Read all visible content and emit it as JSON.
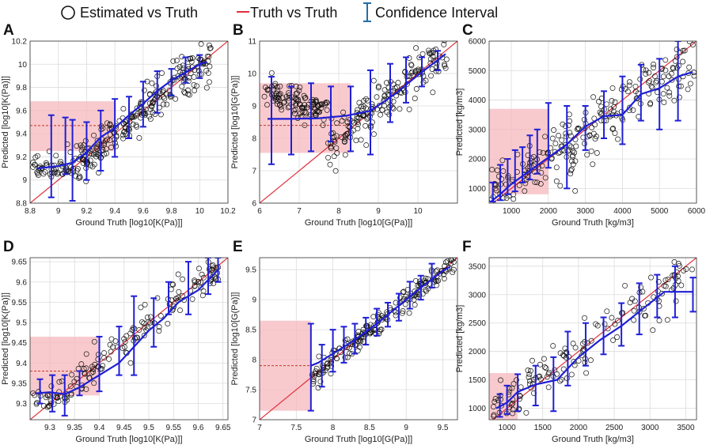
{
  "legend": {
    "estimated": "Estimated vs Truth",
    "truth": "Truth vs Truth",
    "ci": "Confidence Interval"
  },
  "colors": {
    "points": "#111111",
    "truth_line": "#e0303a",
    "fit_line": "#1f1fd6",
    "ci_bar": "#1f1fd6",
    "shade": "#f6b8bc",
    "shade_dash": "#c0392b"
  },
  "chart_data": [
    {
      "panel": "A",
      "type": "scatter",
      "xlabel": "Ground Truth [log10[K(Pa)]]",
      "ylabel": "Predicted [log10[K(Pa)]]",
      "xlim": [
        8.8,
        10.2
      ],
      "ylim": [
        8.8,
        10.2
      ],
      "xticks": [
        "8.8",
        "9",
        "9.2",
        "9.4",
        "9.6",
        "9.8",
        "10",
        "10.2"
      ],
      "yticks": [
        "8.8",
        "9",
        "9.2",
        "9.4",
        "9.6",
        "9.8",
        "10",
        "10.2"
      ],
      "shade": {
        "x": [
          8.8,
          9.4
        ],
        "y": [
          9.25,
          9.68
        ],
        "dash_y": 9.47
      },
      "fit": {
        "x": [
          8.85,
          9.0,
          9.1,
          9.2,
          9.3,
          9.4,
          9.5,
          9.6,
          9.7,
          9.8,
          9.9,
          10.0,
          10.05
        ],
        "y": [
          9.1,
          9.12,
          9.15,
          9.24,
          9.37,
          9.45,
          9.56,
          9.66,
          9.77,
          9.86,
          9.93,
          10.0,
          10.02
        ]
      },
      "ci": [
        [
          8.95,
          8.85,
          9.56
        ],
        [
          9.05,
          9.05,
          9.54
        ],
        [
          9.1,
          8.82,
          9.52
        ],
        [
          9.2,
          9.0,
          9.5
        ],
        [
          9.3,
          9.08,
          9.6
        ],
        [
          9.4,
          9.2,
          9.7
        ],
        [
          9.5,
          9.36,
          9.72
        ],
        [
          9.6,
          9.46,
          9.85
        ],
        [
          9.7,
          9.58,
          9.94
        ],
        [
          9.8,
          9.73,
          9.96
        ],
        [
          9.9,
          9.84,
          10.06
        ],
        [
          10.0,
          9.88,
          10.08
        ]
      ],
      "points": {
        "n": 300,
        "xmin": 8.82,
        "xmax": 10.08,
        "slope": 1.0,
        "offset": 0.0,
        "scatter": 0.09,
        "floor": 9.05,
        "seed": 11
      }
    },
    {
      "panel": "B",
      "type": "scatter",
      "xlabel": "Ground Truth [log10[G(Pa)]]",
      "ylabel": "Predicted [log10[G(Pa)]]",
      "xlim": [
        6,
        11
      ],
      "ylim": [
        6,
        11
      ],
      "xticks": [
        "6",
        "7",
        "8",
        "9",
        "10"
      ],
      "yticks": [
        "6",
        "7",
        "8",
        "9",
        "10",
        "11"
      ],
      "shade": {
        "x": [
          6,
          8.3
        ],
        "y": [
          7.55,
          9.7
        ],
        "dash_y": 8.4
      },
      "fit": {
        "x": [
          6.2,
          6.8,
          7.5,
          8.2,
          8.8,
          9.4,
          10.0,
          10.7
        ],
        "y": [
          8.6,
          8.6,
          8.62,
          8.7,
          8.85,
          9.35,
          9.95,
          10.6
        ]
      },
      "ci": [
        [
          6.3,
          7.2,
          9.9
        ],
        [
          6.8,
          7.5,
          9.6
        ],
        [
          7.3,
          7.6,
          9.7
        ],
        [
          7.8,
          7.9,
          9.6
        ],
        [
          8.3,
          7.6,
          9.6
        ],
        [
          8.8,
          7.5,
          10.1
        ],
        [
          9.3,
          8.5,
          10.3
        ],
        [
          9.7,
          9.1,
          10.5
        ],
        [
          10.1,
          9.6,
          10.5
        ],
        [
          10.5,
          10.1,
          10.7
        ]
      ],
      "points": {
        "n": 300,
        "xmin": 6.1,
        "xmax": 10.75,
        "slope": 1.0,
        "offset": 0.0,
        "scatter": 0.35,
        "floor": 8.5,
        "seed": 22
      }
    },
    {
      "panel": "C",
      "type": "scatter",
      "xlabel": "Ground Truth [kg/m3]",
      "ylabel": "Predicted [kg/m3]",
      "xlim": [
        400,
        6000
      ],
      "ylim": [
        500,
        6000
      ],
      "xticks": [
        "1000",
        "2000",
        "3000",
        "4000",
        "5000",
        "6000"
      ],
      "yticks": [
        "1000",
        "2000",
        "3000",
        "4000",
        "5000",
        "6000"
      ],
      "xtickvals": [
        1000,
        2000,
        3000,
        4000,
        5000,
        6000
      ],
      "ytickvals": [
        1000,
        2000,
        3000,
        4000,
        5000,
        6000
      ],
      "shade": {
        "x": [
          400,
          2000
        ],
        "y": [
          800,
          3700
        ],
        "dash_y": null
      },
      "fit": {
        "x": [
          450,
          700,
          1000,
          1500,
          2000,
          2500,
          3000,
          3500,
          4000,
          4500,
          5000,
          5500,
          5900
        ],
        "y": [
          550,
          800,
          1150,
          1600,
          2050,
          2500,
          3100,
          3450,
          3500,
          4200,
          4400,
          4800,
          4950
        ]
      },
      "ci": [
        [
          500,
          550,
          1200
        ],
        [
          700,
          600,
          1800
        ],
        [
          900,
          800,
          2000
        ],
        [
          1100,
          900,
          2300
        ],
        [
          1300,
          1200,
          2400
        ],
        [
          1500,
          1300,
          2800
        ],
        [
          1700,
          1500,
          3000
        ],
        [
          2000,
          1700,
          3900
        ],
        [
          2500,
          1000,
          3800
        ],
        [
          3000,
          2300,
          3800
        ],
        [
          3500,
          2700,
          4300
        ],
        [
          4000,
          2500,
          4800
        ],
        [
          4500,
          3300,
          5200
        ],
        [
          5000,
          3000,
          5400
        ],
        [
          5500,
          3300,
          6000
        ]
      ],
      "points": {
        "n": 240,
        "xmin": 420,
        "xmax": 5950,
        "slope": 0.85,
        "offset": 350,
        "scatter": 520,
        "floor": 500,
        "seed": 33
      }
    },
    {
      "panel": "D",
      "type": "scatter",
      "xlabel": "Ground Truth [log10[K(Pa)]]",
      "ylabel": "Predicted [log10[K(Pa)]]",
      "xlim": [
        9.26,
        9.66
      ],
      "ylim": [
        9.26,
        9.66
      ],
      "xticks": [
        "9.3",
        "9.35",
        "9.4",
        "9.45",
        "9.5",
        "9.55",
        "9.6",
        "9.65"
      ],
      "yticks": [
        "9.3",
        "9.35",
        "9.4",
        "9.45",
        "9.5",
        "9.55",
        "9.6",
        "9.65"
      ],
      "xtickvals": [
        9.3,
        9.35,
        9.4,
        9.45,
        9.5,
        9.55,
        9.6,
        9.65
      ],
      "ytickvals": [
        9.3,
        9.35,
        9.4,
        9.45,
        9.5,
        9.55,
        9.6,
        9.65
      ],
      "shade": {
        "x": [
          9.26,
          9.4
        ],
        "y": [
          9.32,
          9.465
        ],
        "dash_y": 9.38
      },
      "fit": {
        "x": [
          9.27,
          9.3,
          9.33,
          9.36,
          9.4,
          9.44,
          9.47,
          9.5,
          9.53,
          9.56,
          9.6,
          9.64
        ],
        "y": [
          9.325,
          9.328,
          9.323,
          9.34,
          9.37,
          9.4,
          9.44,
          9.48,
          9.51,
          9.55,
          9.58,
          9.63
        ]
      },
      "ci": [
        [
          9.28,
          9.3,
          9.36
        ],
        [
          9.305,
          9.28,
          9.37
        ],
        [
          9.33,
          9.27,
          9.37
        ],
        [
          9.36,
          9.32,
          9.38
        ],
        [
          9.4,
          9.33,
          9.465
        ],
        [
          9.44,
          9.37,
          9.49
        ],
        [
          9.47,
          9.37,
          9.565
        ],
        [
          9.51,
          9.44,
          9.56
        ],
        [
          9.54,
          9.52,
          9.6
        ],
        [
          9.58,
          9.52,
          9.65
        ],
        [
          9.62,
          9.57,
          9.66
        ],
        [
          9.64,
          9.6,
          9.66
        ]
      ],
      "points": {
        "n": 170,
        "xmin": 9.265,
        "xmax": 9.655,
        "slope": 1.0,
        "offset": 0.0,
        "scatter": 0.022,
        "floor": 9.3,
        "seed": 44
      }
    },
    {
      "panel": "E",
      "type": "scatter",
      "xlabel": "Ground Truth [log10[G(Pa)]]",
      "ylabel": "Predicted [log10[G(Pa)]]",
      "xlim": [
        7,
        9.7
      ],
      "ylim": [
        7,
        9.7
      ],
      "xticks": [
        "7",
        "7.5",
        "8",
        "8.5",
        "9",
        "9.5"
      ],
      "yticks": [
        "7",
        "7.5",
        "8",
        "8.5",
        "9",
        "9.5"
      ],
      "xtickvals": [
        7,
        7.5,
        8,
        8.5,
        9,
        9.5
      ],
      "ytickvals": [
        7,
        7.5,
        8,
        8.5,
        9,
        9.5
      ],
      "shade": {
        "x": [
          7,
          7.7
        ],
        "y": [
          7.15,
          8.65
        ],
        "dash_y": 7.9
      },
      "fit": {
        "x": [
          7.7,
          7.8,
          8.0,
          8.3,
          8.6,
          8.9,
          9.2,
          9.5,
          9.6
        ],
        "y": [
          7.9,
          7.95,
          8.1,
          8.33,
          8.6,
          8.9,
          9.2,
          9.48,
          9.55
        ]
      },
      "ci": [
        [
          7.7,
          7.15,
          8.6
        ],
        [
          7.85,
          7.55,
          8.25
        ],
        [
          8.0,
          7.8,
          8.5
        ],
        [
          8.15,
          7.95,
          8.55
        ],
        [
          8.3,
          8.1,
          8.6
        ],
        [
          8.45,
          8.25,
          8.7
        ],
        [
          8.6,
          8.4,
          8.85
        ],
        [
          8.75,
          8.55,
          8.95
        ],
        [
          8.9,
          8.65,
          9.1
        ],
        [
          9.05,
          8.85,
          9.3
        ],
        [
          9.2,
          9.0,
          9.4
        ],
        [
          9.35,
          9.2,
          9.6
        ]
      ],
      "points": {
        "n": 200,
        "xmin": 7.7,
        "xmax": 9.65,
        "slope": 1.0,
        "offset": 0.0,
        "scatter": 0.1,
        "floor": 7.0,
        "seed": 55
      }
    },
    {
      "panel": "F",
      "type": "scatter",
      "xlabel": "Ground Truth [kg/m3]",
      "ylabel": "Predicted [kg/m3]",
      "xlim": [
        750,
        3650
      ],
      "ylim": [
        800,
        3650
      ],
      "xticks": [
        "1000",
        "1500",
        "2000",
        "2500",
        "3000",
        "3500"
      ],
      "yticks": [
        "1000",
        "1500",
        "2000",
        "2500",
        "3000",
        "3500"
      ],
      "xtickvals": [
        1000,
        1500,
        2000,
        2500,
        3000,
        3500
      ],
      "ytickvals": [
        1000,
        1500,
        2000,
        2500,
        3000,
        3500
      ],
      "shade": {
        "x": [
          750,
          1150
        ],
        "y": [
          800,
          1620
        ],
        "dash_y": null
      },
      "fit": {
        "x": [
          850,
          1000,
          1150,
          1400,
          1700,
          2000,
          2300,
          2600,
          2900,
          3200,
          3400,
          3600
        ],
        "y": [
          1000,
          1100,
          1290,
          1420,
          1500,
          1900,
          2200,
          2450,
          2750,
          3050,
          3050,
          3050
        ]
      },
      "ci": [
        [
          900,
          850,
          1250
        ],
        [
          1000,
          900,
          1400
        ],
        [
          1150,
          950,
          1600
        ],
        [
          1400,
          1050,
          1750
        ],
        [
          1650,
          950,
          1900
        ],
        [
          1850,
          1400,
          2350
        ],
        [
          2100,
          1750,
          2500
        ],
        [
          2350,
          1950,
          2600
        ],
        [
          2600,
          2100,
          2850
        ],
        [
          2850,
          2300,
          3200
        ],
        [
          3100,
          2600,
          3350
        ],
        [
          3350,
          2600,
          3500
        ],
        [
          3600,
          2700,
          3300
        ]
      ],
      "points": {
        "n": 150,
        "xmin": 780,
        "xmax": 3600,
        "slope": 0.93,
        "offset": 150,
        "scatter": 190,
        "floor": 800,
        "seed": 66
      }
    }
  ]
}
